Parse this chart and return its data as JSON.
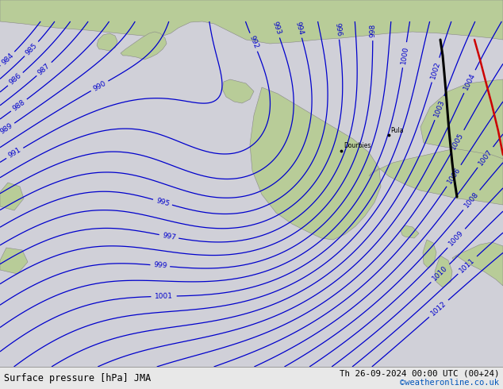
{
  "title_left": "Surface pressure [hPa] JMA",
  "title_right": "Th 26-09-2024 00:00 UTC (00+24)",
  "watermark": "©weatheronline.co.uk",
  "ocean_color": "#d0d0d8",
  "land_color": "#b8cc98",
  "land_edge_color": "#888888",
  "contour_color_blue": "#0000cc",
  "contour_color_black": "#000000",
  "contour_color_red": "#cc0000",
  "footer_bg": "#e8e8e8",
  "watermark_color": "#0055bb",
  "fig_bg": "#c0c0c8"
}
